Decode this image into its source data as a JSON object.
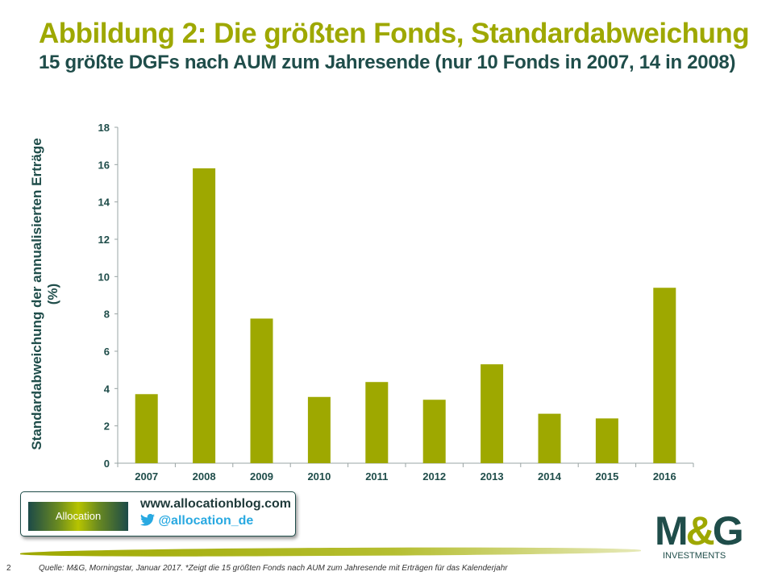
{
  "header": {
    "title": "Abbildung 2: Die größten Fonds, Standardabweichung",
    "subtitle": "15 größte DGFs nach AUM zum Jahresende (nur 10 Fonds in 2007, 14 in 2008)"
  },
  "chart_data": {
    "type": "bar",
    "title": "",
    "xlabel": "",
    "ylabel": "Standardabweichung der annualisierten Erträge (%)",
    "categories": [
      "2007",
      "2008",
      "2009",
      "2010",
      "2011",
      "2012",
      "2013",
      "2014",
      "2015",
      "2016"
    ],
    "values": [
      3.7,
      15.8,
      7.75,
      3.55,
      4.35,
      3.4,
      5.3,
      2.65,
      2.4,
      9.4
    ],
    "ylim": [
      0,
      18
    ],
    "yticks": [
      0,
      2,
      4,
      6,
      8,
      10,
      12,
      14,
      16,
      18
    ],
    "grid": false,
    "bar_color": "#9ea800",
    "axis_text_color": "#1f4d4a"
  },
  "promo": {
    "logo_text": "Allocation",
    "url": "www.allocationblog.com",
    "twitter": "@allocation_de",
    "twitter_icon": "twitter-bird-icon"
  },
  "brand": {
    "m": "M",
    "amp": "&",
    "g": "G",
    "investments": "INVESTMENTS"
  },
  "footer": {
    "page": "2",
    "source": "Quelle: M&G, Morningstar, Januar 2017. *Zeigt die 15 größten Fonds nach AUM zum Jahresende mit Erträgen für das Kalenderjahr"
  }
}
